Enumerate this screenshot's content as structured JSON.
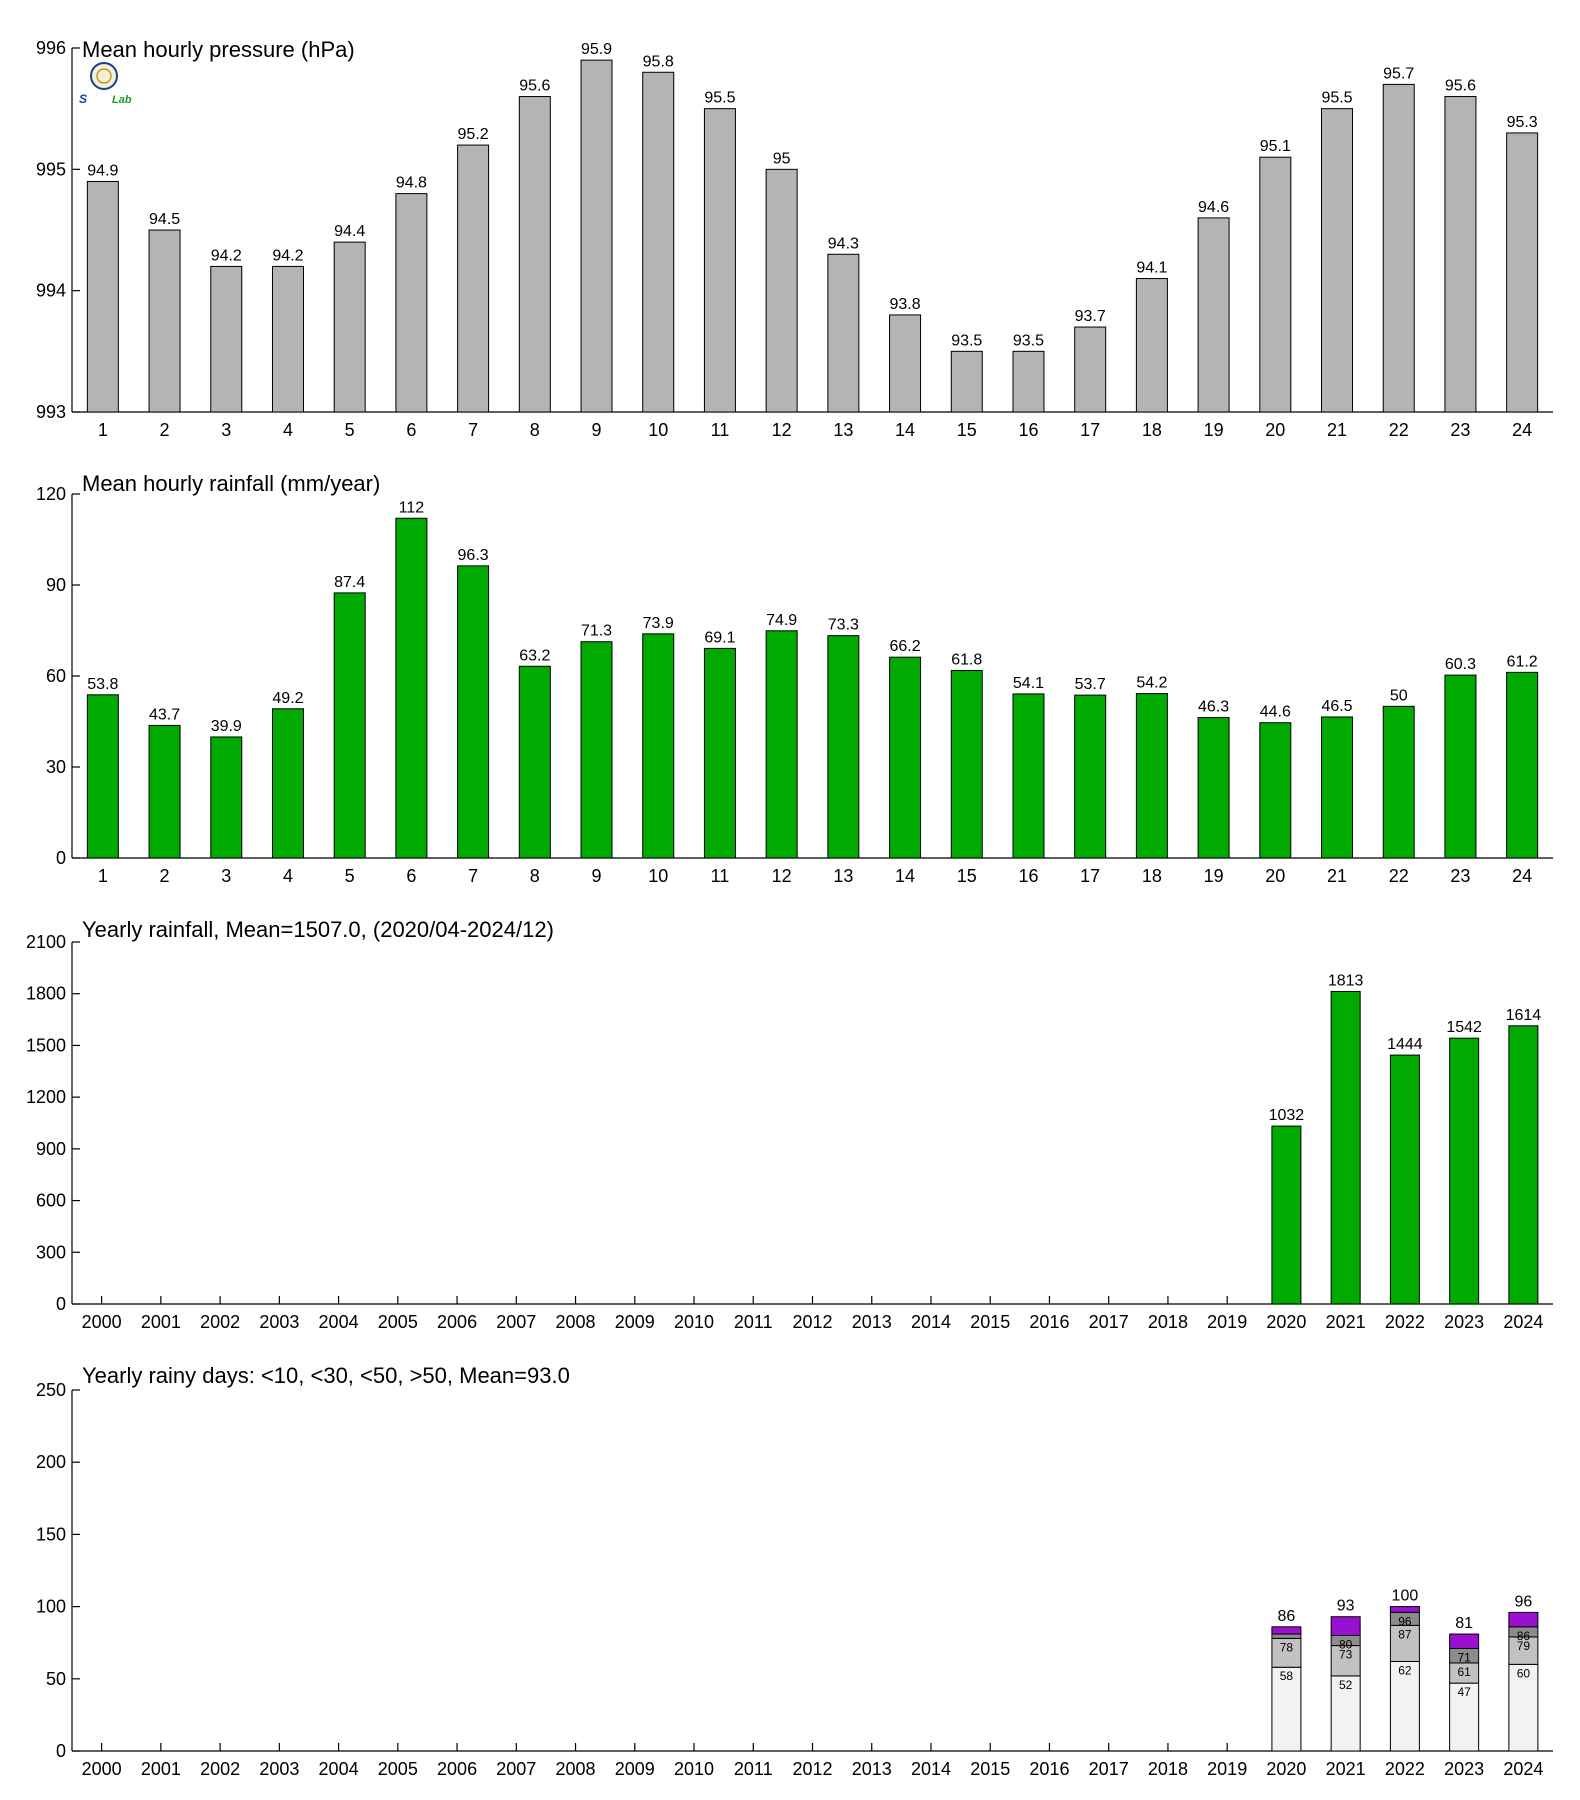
{
  "colors": {
    "pressure": "#b4b4b4",
    "rainfall": "#00aa00",
    "lt10": "#f2f2f2",
    "lt30": "#c2c2c2",
    "lt50": "#8c8c8c",
    "gt50": "#9a10d0",
    "outline": "#000000"
  },
  "logo": {
    "text_s": "S",
    "text_lab": "Lab"
  },
  "chart_data": [
    {
      "type": "bar",
      "title": "Mean hourly pressure (hPa)",
      "categories": [
        "1",
        "2",
        "3",
        "4",
        "5",
        "6",
        "7",
        "8",
        "9",
        "10",
        "11",
        "12",
        "13",
        "14",
        "15",
        "16",
        "17",
        "18",
        "19",
        "20",
        "21",
        "22",
        "23",
        "24"
      ],
      "values": [
        994.9,
        994.5,
        994.2,
        994.2,
        994.4,
        994.8,
        995.2,
        995.6,
        995.9,
        995.8,
        995.5,
        995.0,
        994.3,
        993.8,
        993.5,
        993.5,
        993.7,
        994.1,
        994.6,
        995.1,
        995.5,
        995.7,
        995.6,
        995.3
      ],
      "labels": [
        "94.9",
        "94.5",
        "94.2",
        "94.2",
        "94.4",
        "94.8",
        "95.2",
        "95.6",
        "95.9",
        "95.8",
        "95.5",
        "95",
        "94.3",
        "93.8",
        "93.5",
        "93.5",
        "93.7",
        "94.1",
        "94.6",
        "95.1",
        "95.5",
        "95.7",
        "95.6",
        "95.3"
      ],
      "ylim": [
        993,
        996
      ],
      "yticks": [
        993,
        994,
        995,
        996
      ],
      "grid": false
    },
    {
      "type": "bar",
      "title": "Mean hourly rainfall (mm/year)",
      "categories": [
        "1",
        "2",
        "3",
        "4",
        "5",
        "6",
        "7",
        "8",
        "9",
        "10",
        "11",
        "12",
        "13",
        "14",
        "15",
        "16",
        "17",
        "18",
        "19",
        "20",
        "21",
        "22",
        "23",
        "24"
      ],
      "values": [
        53.8,
        43.7,
        39.9,
        49.2,
        87.4,
        112,
        96.3,
        63.2,
        71.3,
        73.9,
        69.1,
        74.9,
        73.3,
        66.2,
        61.8,
        54.1,
        53.7,
        54.2,
        46.3,
        44.6,
        46.5,
        50,
        60.3,
        61.2
      ],
      "labels": [
        "53.8",
        "43.7",
        "39.9",
        "49.2",
        "87.4",
        "112",
        "96.3",
        "63.2",
        "71.3",
        "73.9",
        "69.1",
        "74.9",
        "73.3",
        "66.2",
        "61.8",
        "54.1",
        "53.7",
        "54.2",
        "46.3",
        "44.6",
        "46.5",
        "50",
        "60.3",
        "61.2"
      ],
      "ylim": [
        0,
        120
      ],
      "yticks": [
        0,
        30,
        60,
        90,
        120
      ],
      "grid": false
    },
    {
      "type": "bar",
      "title": "Yearly rainfall, Mean=1507.0, (2020/04-2024/12)",
      "categories": [
        "2000",
        "2001",
        "2002",
        "2003",
        "2004",
        "2005",
        "2006",
        "2007",
        "2008",
        "2009",
        "2010",
        "2011",
        "2012",
        "2013",
        "2014",
        "2015",
        "2016",
        "2017",
        "2018",
        "2019",
        "2020",
        "2021",
        "2022",
        "2023",
        "2024"
      ],
      "values": [
        null,
        null,
        null,
        null,
        null,
        null,
        null,
        null,
        null,
        null,
        null,
        null,
        null,
        null,
        null,
        null,
        null,
        null,
        null,
        null,
        1032,
        1813,
        1444,
        1542,
        1614
      ],
      "labels": [
        "",
        "",
        "",
        "",
        "",
        "",
        "",
        "",
        "",
        "",
        "",
        "",
        "",
        "",
        "",
        "",
        "",
        "",
        "",
        "",
        "1032",
        "1813",
        "1444",
        "1542",
        "1614"
      ],
      "ylim": [
        0,
        2100
      ],
      "yticks": [
        0,
        300,
        600,
        900,
        1200,
        1500,
        1800,
        2100
      ],
      "grid": false
    },
    {
      "type": "bar",
      "stacked": true,
      "title": "Yearly rainy days: <10, <30, <50, >50, Mean=93.0",
      "categories": [
        "2000",
        "2001",
        "2002",
        "2003",
        "2004",
        "2005",
        "2006",
        "2007",
        "2008",
        "2009",
        "2010",
        "2011",
        "2012",
        "2013",
        "2014",
        "2015",
        "2016",
        "2017",
        "2018",
        "2019",
        "2020",
        "2021",
        "2022",
        "2023",
        "2024"
      ],
      "years_with_data": [
        "2020",
        "2021",
        "2022",
        "2023",
        "2024"
      ],
      "cumulative": {
        "lt10": [
          58,
          52,
          62,
          47,
          60
        ],
        "lt30": [
          78,
          73,
          87,
          61,
          79
        ],
        "lt50": [
          81,
          80,
          96,
          71,
          86
        ],
        "total": [
          86,
          93,
          100,
          81,
          96
        ]
      },
      "segment_labels": {
        "lt10": [
          "58",
          "52",
          "62",
          "47",
          "60"
        ],
        "lt30": [
          "78",
          "73",
          "87",
          "61",
          "79"
        ],
        "lt50": [
          "",
          "80",
          "96",
          "71",
          "86"
        ]
      },
      "total_labels": [
        "86",
        "93",
        "100",
        "81",
        "96"
      ],
      "ylim": [
        0,
        250
      ],
      "yticks": [
        0,
        50,
        100,
        150,
        200,
        250
      ],
      "grid": false
    }
  ]
}
